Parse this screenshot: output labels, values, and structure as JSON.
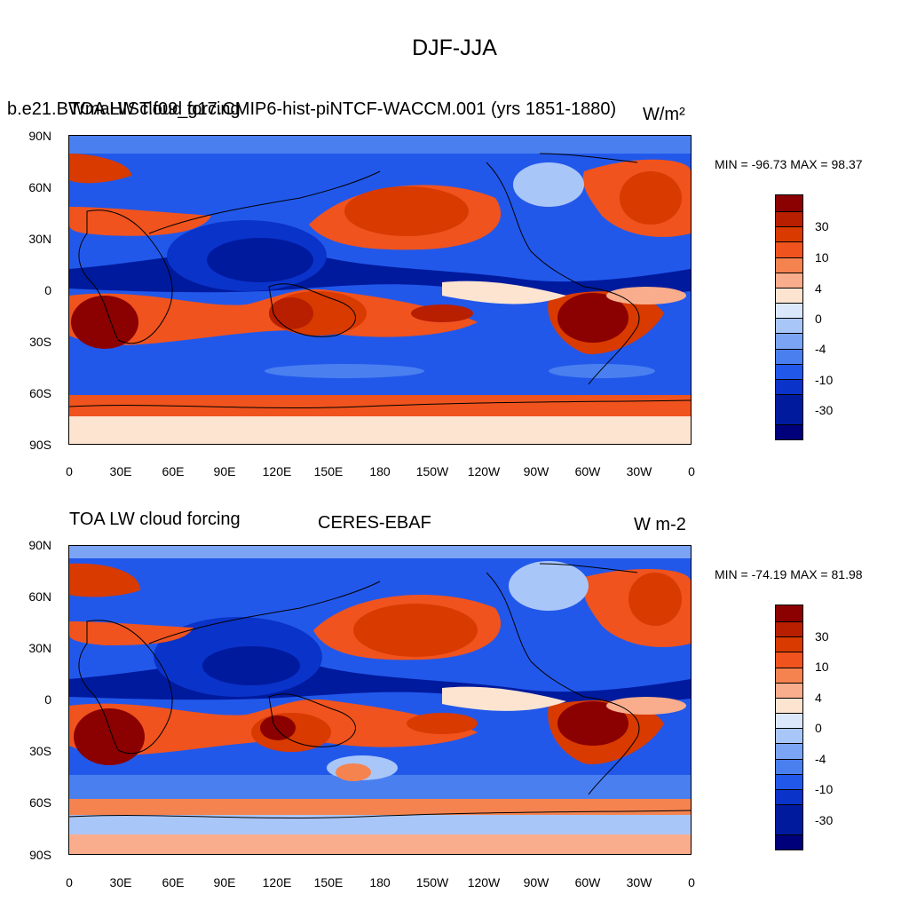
{
  "page_title": "DJF-JJA",
  "panels": [
    {
      "left_title": "TOA LW cloud forcing",
      "long_title": "b.e21.BWmaHIST.f09_g17.CMIP6-hist-piNTCF-WACCM.001 (yrs 1851-1880)",
      "units": "W/m²",
      "min_max": "MIN = -96.73 MAX =  98.37"
    },
    {
      "left_title": "TOA LW cloud forcing",
      "center_title": "CERES-EBAF",
      "units": "W m-2",
      "min_max": "MIN = -74.19 MAX =  81.98"
    }
  ],
  "lat_labels": [
    "90N",
    "60N",
    "30N",
    "0",
    "30S",
    "60S",
    "90S"
  ],
  "lon_labels": [
    "0",
    "30E",
    "60E",
    "90E",
    "120E",
    "150E",
    "180",
    "150W",
    "120W",
    "90W",
    "60W",
    "30W",
    "0"
  ],
  "colorbar": {
    "levels_labels": [
      "30",
      "10",
      "4",
      "0",
      "-4",
      "-10",
      "-30"
    ],
    "colors": [
      "#8b0000",
      "#b81e00",
      "#d83a00",
      "#f0531e",
      "#f5834f",
      "#f9ad8c",
      "#fde4d0",
      "#dbe8fb",
      "#a9c6f8",
      "#7ba4f5",
      "#4a7ff0",
      "#2258ea",
      "#0a33c9",
      "#001a9e",
      "#00007a"
    ]
  },
  "palette": {
    "deep_red": "#8b0000",
    "red": "#d83a00",
    "orange": "#f5834f",
    "pale": "#fde4d0",
    "pale_blue": "#a9c6f8",
    "blue": "#2258ea",
    "deep_blue": "#001a9e",
    "coast": "#000000"
  }
}
